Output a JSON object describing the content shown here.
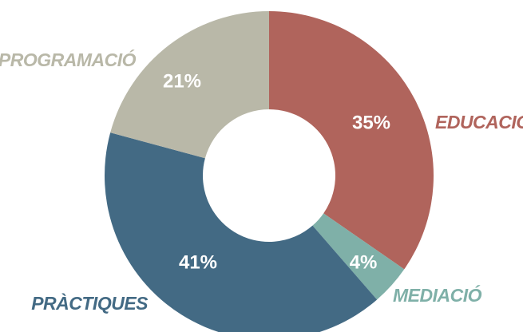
{
  "chart_data": {
    "type": "donut",
    "categories": [
      "EDUCACIÓ",
      "MEDIACIÓ",
      "PRÀCTIQUES",
      "PROGRAMACIÓ"
    ],
    "values": [
      35,
      4,
      41,
      21
    ],
    "value_labels": [
      "35%",
      "4%",
      "41%",
      "21%"
    ],
    "colors": [
      "#b0645c",
      "#7fb0a8",
      "#436a84",
      "#b9b8a8"
    ]
  }
}
